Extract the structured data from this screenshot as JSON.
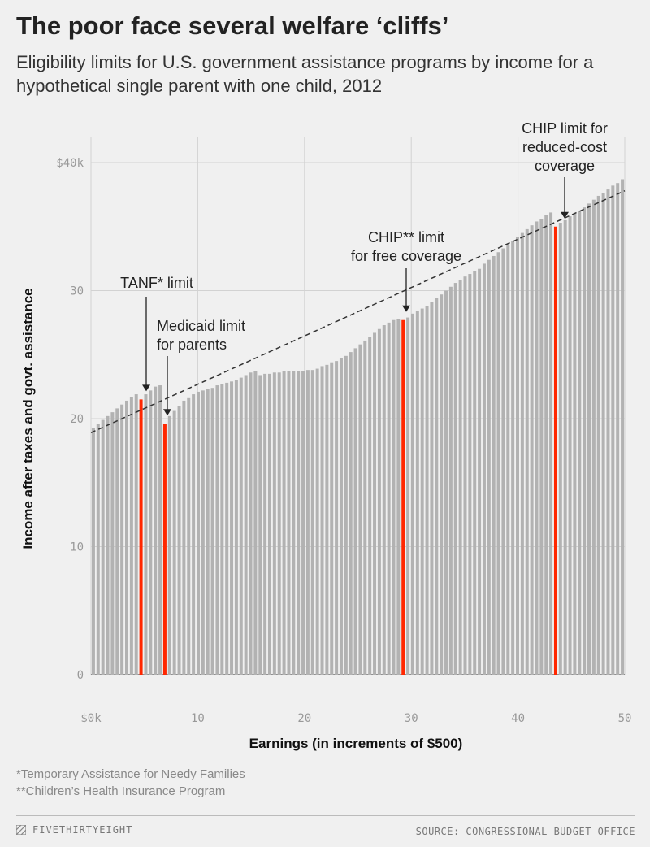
{
  "title": "The poor face several welfare ‘cliffs’",
  "subtitle": "Eligibility limits for U.S. government assistance programs by income for a hypothetical single parent with one child, 2012",
  "footnotes": [
    "*Temporary Assistance for Needy Families",
    "**Children’s Health Insurance Program"
  ],
  "brand": "FIVETHIRTYEIGHT",
  "source": "SOURCE: CONGRESSIONAL BUDGET OFFICE",
  "colors": {
    "bar": "#b2b2b2",
    "highlight": "#ff2700",
    "trend": "#333333",
    "background": "#f0f0f0",
    "grid": "#d2d2d2"
  },
  "chart_data": {
    "type": "bar",
    "xlabel": "Earnings (in increments of $500)",
    "ylabel": "Income after taxes and govt. assistance",
    "x_ticks": [
      {
        "value": 0,
        "label": "$0k"
      },
      {
        "value": 10,
        "label": "10"
      },
      {
        "value": 20,
        "label": "20"
      },
      {
        "value": 30,
        "label": "30"
      },
      {
        "value": 40,
        "label": "40"
      },
      {
        "value": 50,
        "label": "50"
      }
    ],
    "y_ticks": [
      {
        "value": 0,
        "label": "0"
      },
      {
        "value": 10000,
        "label": "10"
      },
      {
        "value": 20000,
        "label": "20"
      },
      {
        "value": 30000,
        "label": "30"
      },
      {
        "value": 40000,
        "label": "40"
      }
    ],
    "y_top_label": "$40k",
    "ylim": [
      0,
      40000
    ],
    "xlim": [
      0,
      50
    ],
    "values": [
      19300,
      19600,
      19900,
      20200,
      20500,
      20800,
      21100,
      21400,
      21700,
      21900,
      21500,
      21900,
      22200,
      22500,
      22600,
      19600,
      20200,
      20600,
      21000,
      21400,
      21600,
      21900,
      22100,
      22200,
      22300,
      22400,
      22600,
      22700,
      22800,
      22900,
      23000,
      23200,
      23400,
      23600,
      23700,
      23400,
      23500,
      23500,
      23600,
      23600,
      23700,
      23700,
      23700,
      23700,
      23700,
      23800,
      23800,
      23900,
      24100,
      24200,
      24400,
      24500,
      24700,
      24900,
      25200,
      25500,
      25800,
      26100,
      26400,
      26700,
      27000,
      27300,
      27500,
      27700,
      27800,
      27700,
      27900,
      28200,
      28400,
      28600,
      28800,
      29100,
      29400,
      29700,
      30000,
      30300,
      30600,
      30800,
      31100,
      31300,
      31500,
      31700,
      32100,
      32400,
      32700,
      33000,
      33300,
      33600,
      33900,
      34200,
      34500,
      34800,
      35100,
      35400,
      35600,
      35900,
      36100,
      35000,
      35300,
      35500,
      35800,
      36000,
      36200,
      36500,
      36800,
      37100,
      37400,
      37600,
      37900,
      38200,
      38400,
      38700
    ],
    "highlighted_indices": [
      10,
      15,
      65,
      97
    ],
    "trend_line": {
      "x": [
        0,
        50
      ],
      "y": [
        18900,
        37800
      ],
      "style": "dashed"
    },
    "grid": true,
    "annotations": [
      {
        "lines": [
          "TANF* limit"
        ],
        "bar_index": 10
      },
      {
        "lines": [
          "Medicaid limit",
          "for parents"
        ],
        "bar_index": 15
      },
      {
        "lines": [
          "CHIP** limit",
          "for free coverage"
        ],
        "bar_index": 65
      },
      {
        "lines": [
          "CHIP limit for",
          "reduced-cost",
          "coverage"
        ],
        "bar_index": 97
      }
    ]
  }
}
